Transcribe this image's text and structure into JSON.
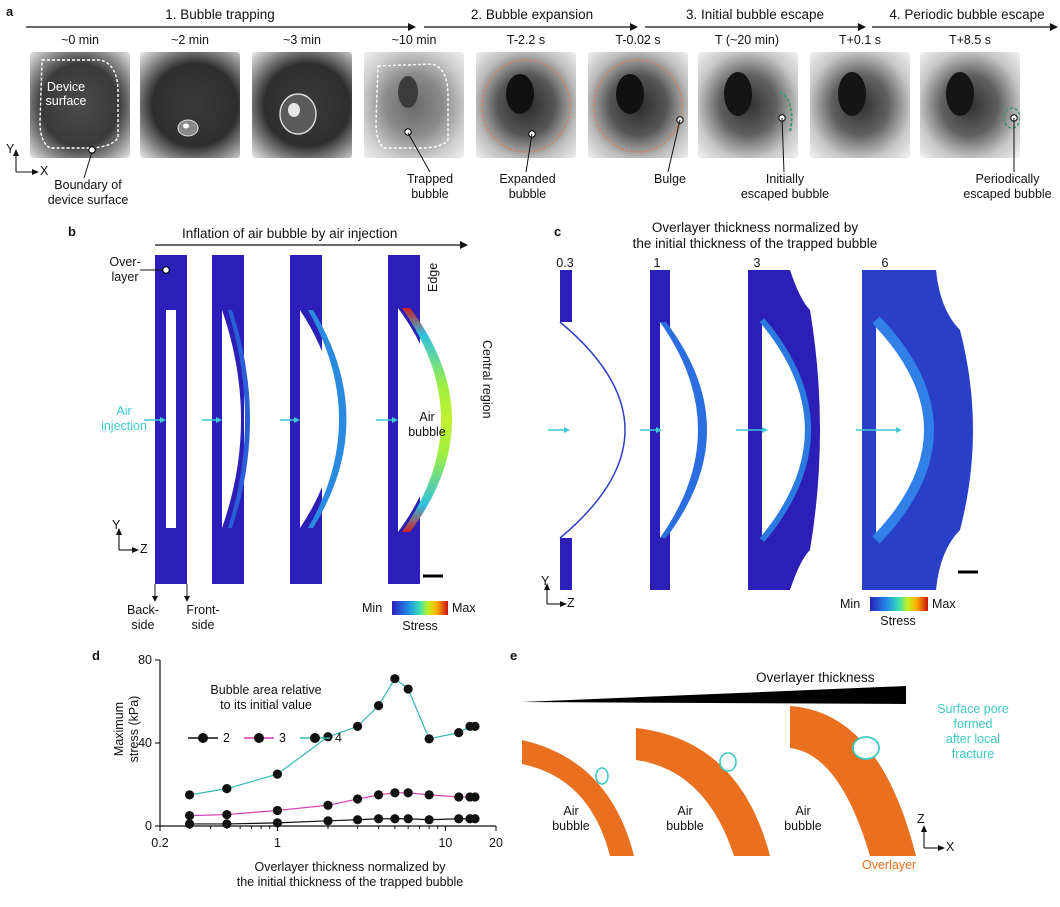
{
  "panel_a": {
    "label": "a",
    "stages": [
      "1. Bubble trapping",
      "2. Bubble expansion",
      "3. Initial bubble escape",
      "4. Periodic bubble escape"
    ],
    "times": [
      "~0 min",
      "~2 min",
      "~3 min",
      "~10 min",
      "T-2.2 s",
      "T-0.02 s",
      "T (~20 min)",
      "T+0.1 s",
      "T+8.5 s"
    ],
    "device_surface": [
      "Device",
      "surface"
    ],
    "annotations": {
      "boundary": [
        "Boundary of",
        "device surface"
      ],
      "trapped": [
        "Trapped",
        "bubble"
      ],
      "expanded": [
        "Expanded",
        "bubble"
      ],
      "bulge": "Bulge",
      "initially": [
        "Initially",
        "escaped bubble"
      ],
      "periodically": [
        "Periodically",
        "escaped bubble"
      ]
    },
    "axis_y": "Y",
    "axis_x": "X"
  },
  "panel_b": {
    "label": "b",
    "title": "Inflation of air bubble by air injection",
    "overlayer": [
      "Over-",
      "layer"
    ],
    "edge": "Edge",
    "central_region": "Central region",
    "air_bubble": [
      "Air",
      "bubble"
    ],
    "air_injection": [
      "Air",
      "injection"
    ],
    "back_side": [
      "Back-",
      "side"
    ],
    "front_side": [
      "Front-",
      "side"
    ],
    "axis_y": "Y",
    "axis_z": "Z",
    "colorbar_min": "Min",
    "colorbar_max": "Max",
    "colorbar_label": "Stress"
  },
  "panel_c": {
    "label": "c",
    "title": [
      "Overlayer thickness normalized by",
      "the initial thickness of the trapped bubble"
    ],
    "values": [
      "0.3",
      "1",
      "3",
      "6"
    ],
    "axis_y": "Y",
    "axis_z": "Z",
    "colorbar_min": "Min",
    "colorbar_max": "Max",
    "colorbar_label": "Stress"
  },
  "panel_d": {
    "label": "d",
    "chart_data": {
      "type": "line",
      "xscale": "log",
      "xlim": [
        0.2,
        20
      ],
      "ylim": [
        0,
        80
      ],
      "xticks": [
        "0.2",
        "1",
        "10",
        "20"
      ],
      "yticks": [
        "0",
        "40",
        "80"
      ],
      "xlabel": [
        "Overlayer thickness normalized by",
        "the initial thickness of the trapped bubble"
      ],
      "ylabel": [
        "Maximum",
        "stress (kPa)"
      ],
      "legend_title": [
        "Bubble area relative",
        "to its initial value"
      ],
      "x": [
        0.3,
        0.5,
        1,
        2,
        3,
        4,
        5,
        6,
        8,
        12,
        14,
        15
      ],
      "series": [
        {
          "name": "2",
          "color": "#111111",
          "values": [
            1,
            1,
            1.5,
            2.5,
            3,
            3.5,
            3.5,
            3.5,
            3,
            3.5,
            3.5,
            3.5
          ]
        },
        {
          "name": "3",
          "color": "#d63cb4",
          "values": [
            5,
            5.5,
            7.5,
            10,
            13,
            15,
            16,
            16,
            15,
            14,
            14,
            14
          ]
        },
        {
          "name": "4",
          "color": "#33b8b0",
          "values": [
            15,
            18,
            25,
            43,
            48,
            58,
            71,
            66,
            42,
            45,
            48,
            48
          ]
        }
      ]
    }
  },
  "panel_e": {
    "label": "e",
    "overlayer_thickness": "Overlayer thickness",
    "surface_pore": [
      "Surface pore",
      "formed",
      "after local",
      "fracture"
    ],
    "air_bubble": [
      "Air",
      "bubble"
    ],
    "overlayer": "Overlayer",
    "axis_z": "Z",
    "axis_x": "X",
    "colors": {
      "overlayer": "#e8701e",
      "pore": "#3cc9c4"
    }
  }
}
